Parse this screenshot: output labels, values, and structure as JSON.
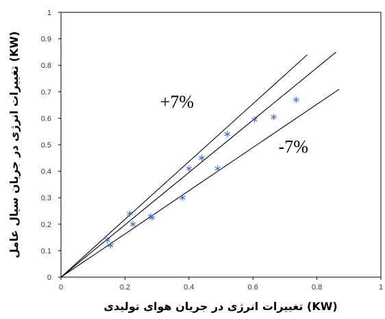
{
  "chart_data": {
    "type": "scatter",
    "title": "",
    "xlabel": "تغییرات انرژی در جریان هوای تولیدی (KW)",
    "ylabel": "تغییرات انرژی در جریان سیال عامل (KW)",
    "xlim": [
      0,
      1
    ],
    "ylim": [
      0,
      1
    ],
    "x_ticks": [
      "0",
      "0.2",
      "0.4",
      "0.6",
      "0.8",
      "1"
    ],
    "y_ticks": [
      "0",
      "0.1",
      "0.2",
      "0.3",
      "0.4",
      "0.5",
      "0.6",
      "0.7",
      "0.8",
      "0.9",
      "1"
    ],
    "grid": false,
    "legend": "none",
    "series": [
      {
        "marker": "asterisk",
        "color": "#4472c4",
        "x": [
          0.145,
          0.155,
          0.215,
          0.225,
          0.28,
          0.285,
          0.38,
          0.4,
          0.44,
          0.49,
          0.52,
          0.605,
          0.665,
          0.735
        ],
        "y": [
          0.14,
          0.12,
          0.24,
          0.2,
          0.23,
          0.225,
          0.3,
          0.41,
          0.45,
          0.41,
          0.54,
          0.595,
          0.605,
          0.67
        ]
      }
    ],
    "reference_lines": [
      {
        "x_end": 0.87,
        "y_end": 0.71,
        "color": "#000000"
      },
      {
        "x_end": 0.86,
        "y_end": 0.85,
        "color": "#000000"
      },
      {
        "x_end": 0.77,
        "y_end": 0.84,
        "color": "#000000"
      }
    ],
    "annotations": [
      {
        "text": "+7%",
        "x": 0.31,
        "y": 0.64
      },
      {
        "text": "-7%",
        "x": 0.68,
        "y": 0.47
      }
    ]
  }
}
